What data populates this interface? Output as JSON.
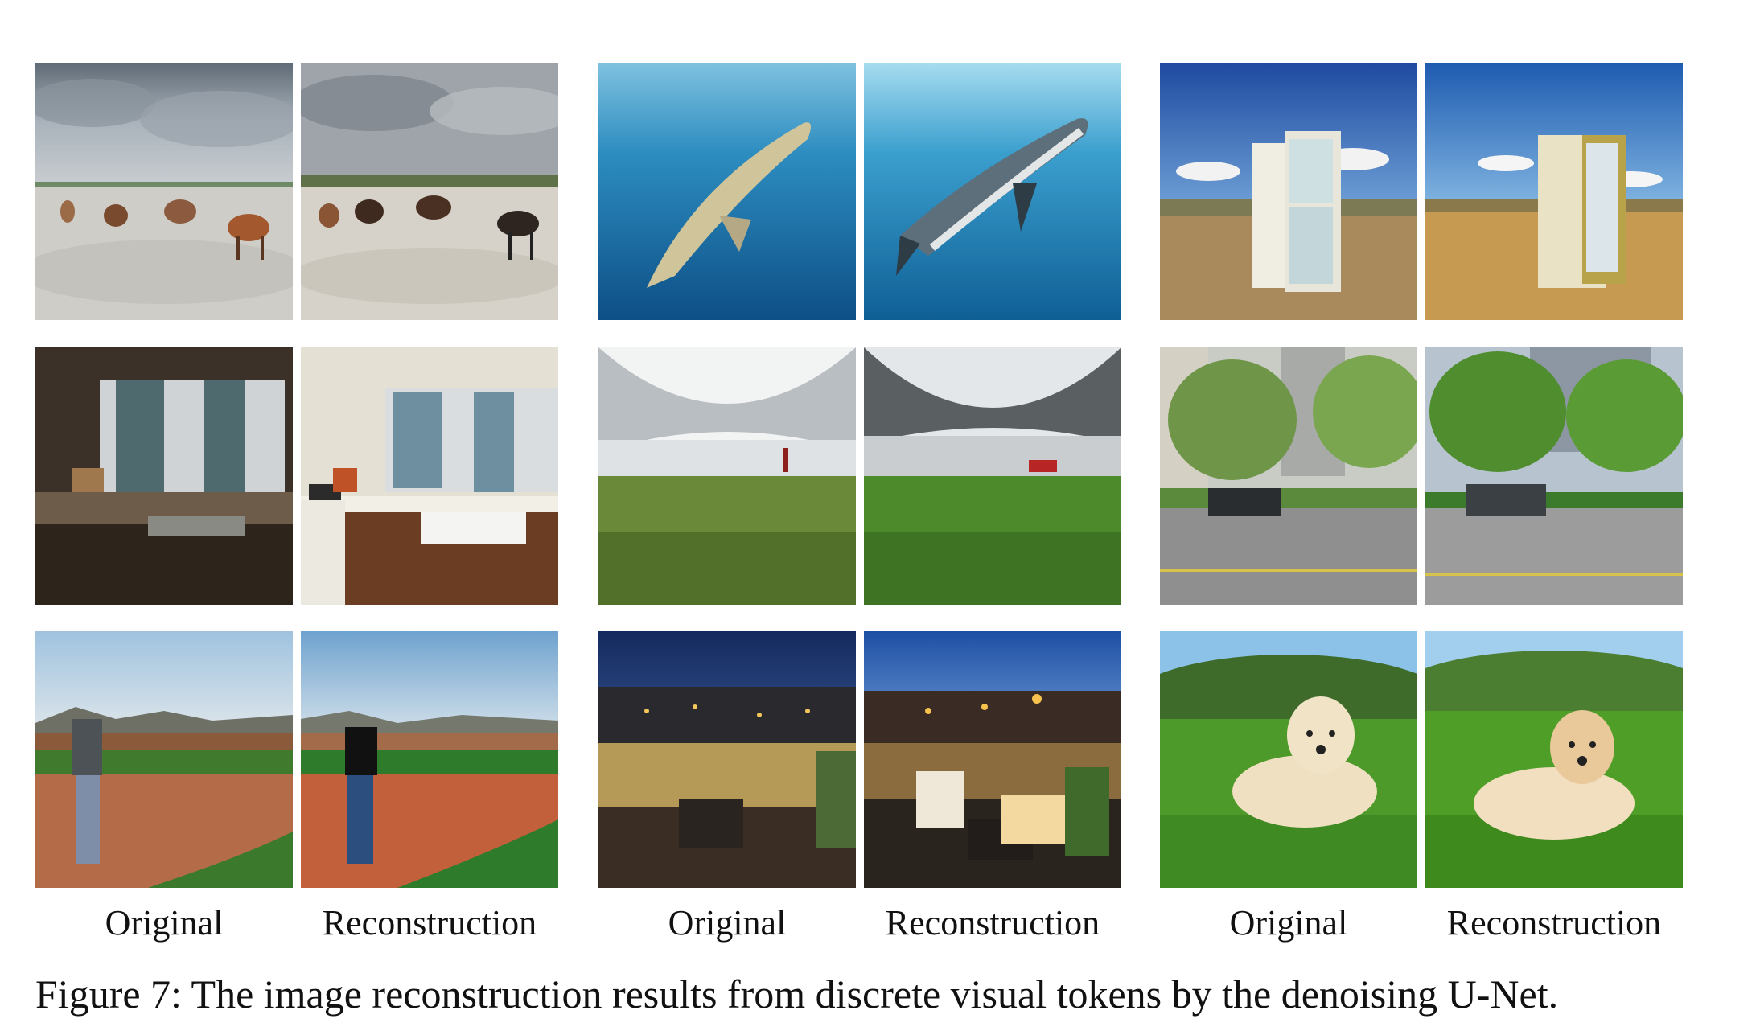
{
  "figure": {
    "caption": "Figure 7: The image reconstruction results from discrete visual tokens by the denoising U-Net.",
    "column_labels": [
      "Original",
      "Reconstruction",
      "Original",
      "Reconstruction",
      "Original",
      "Reconstruction"
    ]
  }
}
